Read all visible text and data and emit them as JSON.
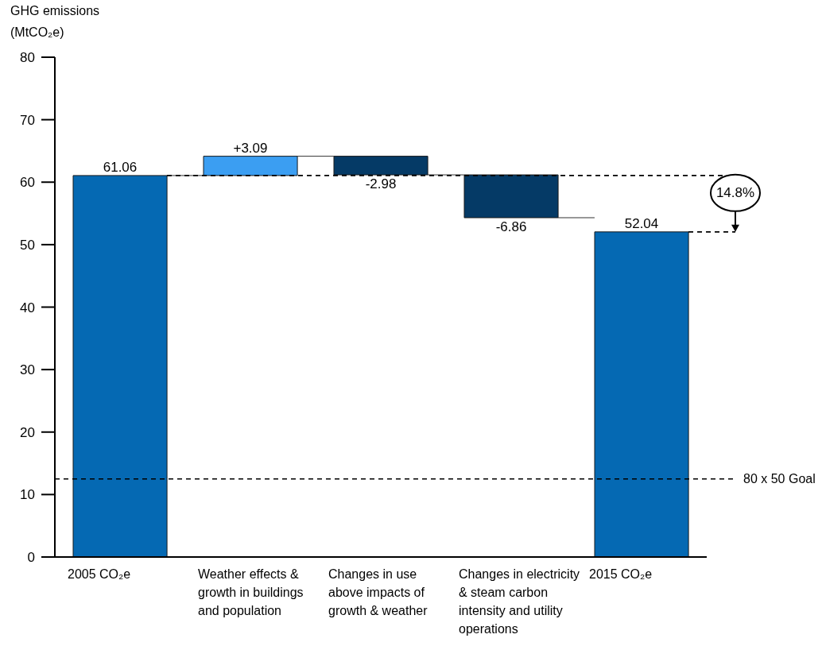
{
  "chart_data": {
    "type": "bar",
    "ylabel": "GHG emissions (MtCO₂e)",
    "categories": [
      "2005 CO₂e",
      "Weather effects & growth in buildings and population",
      "Changes in use above impacts of growth & weather",
      "Changes in electricity & steam carbon intensity and utility operations",
      "2015 CO₂e"
    ],
    "values": [
      61.06,
      3.09,
      -2.98,
      -6.86,
      52.04
    ],
    "base": [
      0,
      61.06,
      64.15,
      61.17,
      0
    ],
    "colors": [
      "#0569b3",
      "#3b9ef2",
      "#053a66",
      "#053a66",
      "#0569b3"
    ],
    "value_labels": [
      "61.06",
      "+3.09",
      "-2.98",
      "-6.86",
      "52.04"
    ],
    "ylim": [
      0,
      80
    ],
    "yticks": [
      0,
      10,
      20,
      30,
      40,
      50,
      60,
      70,
      80
    ],
    "ref_lines": [
      {
        "axis": "y",
        "value": 61.06,
        "line_style": "dashed",
        "color": "#000000"
      },
      {
        "axis": "y",
        "value": 12.5,
        "label": "80 x 50 Goal",
        "line_style": "dashed",
        "color": "#000000"
      }
    ],
    "annotations": [
      "14.8%"
    ]
  }
}
